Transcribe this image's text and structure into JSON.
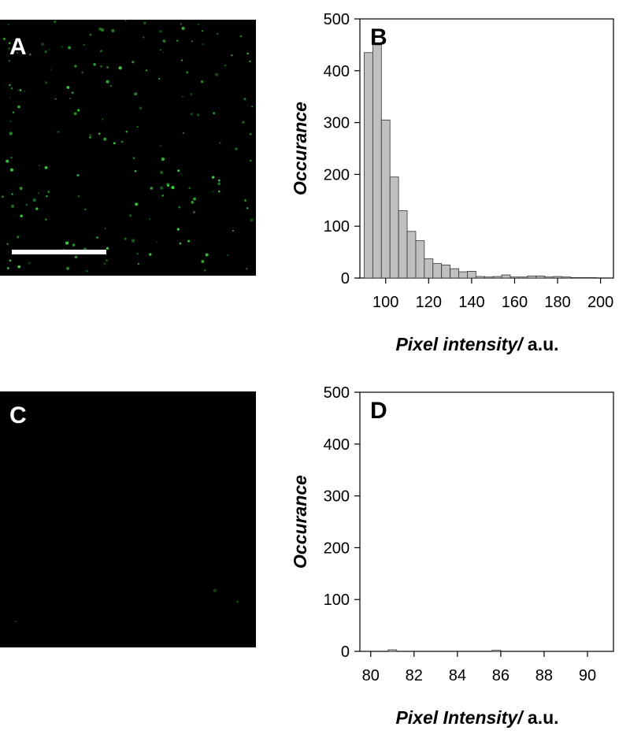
{
  "panels": {
    "a": {
      "letter": "A"
    },
    "c": {
      "letter": "C"
    }
  },
  "colors": {
    "fluorescence": "#3cd23c",
    "bar_fill": "#c0c0c0",
    "bar_stroke": "#333333",
    "image_bg": "#000000"
  },
  "chart_data": [
    {
      "type": "bar",
      "panel_letter": "B",
      "xlabel_italic": "Pixel intensity/",
      "xlabel_units": " a.u.",
      "ylabel": "Occurance",
      "xlim": [
        88,
        206
      ],
      "ylim": [
        0,
        500
      ],
      "xticks": [
        100,
        120,
        140,
        160,
        180,
        200
      ],
      "yticks": [
        0,
        100,
        200,
        300,
        400,
        500
      ],
      "bin_width": 4,
      "bins": [
        {
          "x": 90,
          "y": 435
        },
        {
          "x": 94,
          "y": 450
        },
        {
          "x": 98,
          "y": 305
        },
        {
          "x": 102,
          "y": 195
        },
        {
          "x": 106,
          "y": 130
        },
        {
          "x": 110,
          "y": 90
        },
        {
          "x": 114,
          "y": 72
        },
        {
          "x": 118,
          "y": 37
        },
        {
          "x": 122,
          "y": 28
        },
        {
          "x": 126,
          "y": 25
        },
        {
          "x": 130,
          "y": 18
        },
        {
          "x": 134,
          "y": 12
        },
        {
          "x": 138,
          "y": 13
        },
        {
          "x": 142,
          "y": 3
        },
        {
          "x": 146,
          "y": 2
        },
        {
          "x": 150,
          "y": 3
        },
        {
          "x": 154,
          "y": 6
        },
        {
          "x": 158,
          "y": 2
        },
        {
          "x": 162,
          "y": 2
        },
        {
          "x": 166,
          "y": 4
        },
        {
          "x": 170,
          "y": 4
        },
        {
          "x": 174,
          "y": 2
        },
        {
          "x": 178,
          "y": 3
        },
        {
          "x": 182,
          "y": 2
        },
        {
          "x": 186,
          "y": 1
        },
        {
          "x": 190,
          "y": 1
        },
        {
          "x": 194,
          "y": 1
        }
      ]
    },
    {
      "type": "bar",
      "panel_letter": "D",
      "xlabel_italic": "Pixel Intensity/",
      "xlabel_units": " a.u.",
      "ylabel": "Occurance",
      "xlim": [
        79.5,
        91.2
      ],
      "ylim": [
        0,
        500
      ],
      "xticks": [
        80,
        82,
        84,
        86,
        88,
        90
      ],
      "yticks": [
        0,
        100,
        200,
        300,
        400,
        500
      ],
      "bin_width": 0.4,
      "bins": [
        {
          "x": 80.8,
          "y": 3
        },
        {
          "x": 85.6,
          "y": 2
        }
      ]
    }
  ]
}
